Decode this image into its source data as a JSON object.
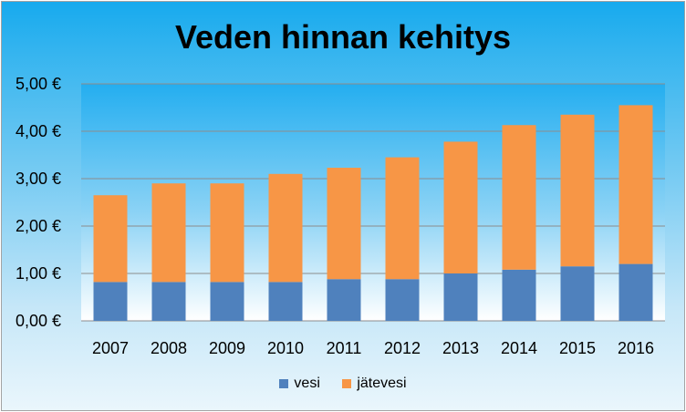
{
  "colors": {
    "vesi": "#4f81bd",
    "jatevesi": "#f79646",
    "gridline": "#8c8c8c",
    "plot_top": "#24aef0",
    "plot_bottom": "#ffffff"
  },
  "chart_data": {
    "type": "bar",
    "stacked": true,
    "title": "Veden hinnan kehitys",
    "xlabel": "",
    "ylabel": "",
    "categories": [
      "2007",
      "2008",
      "2009",
      "2010",
      "2011",
      "2012",
      "2013",
      "2014",
      "2015",
      "2016"
    ],
    "series": [
      {
        "name": "vesi",
        "values": [
          0.82,
          0.82,
          0.82,
          0.82,
          0.88,
          0.88,
          1.0,
          1.08,
          1.15,
          1.2
        ]
      },
      {
        "name": "jätevesi",
        "values": [
          1.83,
          2.08,
          2.08,
          2.28,
          2.35,
          2.57,
          2.78,
          3.05,
          3.2,
          3.35
        ]
      }
    ],
    "ylim": [
      0,
      5
    ],
    "yticks": [
      "0,00 €",
      "1,00 €",
      "2,00 €",
      "3,00 €",
      "4,00 €",
      "5,00 €"
    ],
    "grid": true,
    "legend": "bottom"
  }
}
